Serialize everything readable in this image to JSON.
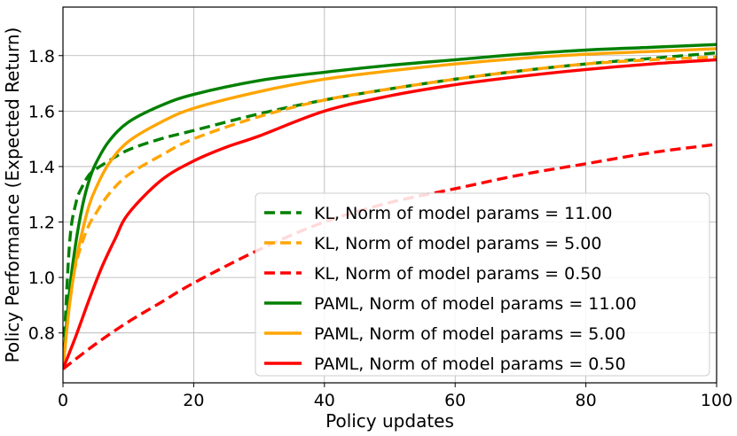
{
  "chart_data": {
    "type": "line",
    "title": "",
    "xlabel": "Policy updates",
    "ylabel": "Policy Performance (Expected Return)",
    "xlim": [
      0,
      100
    ],
    "ylim": [
      0.62,
      1.975
    ],
    "xticks": [
      0,
      20,
      40,
      60,
      80,
      100
    ],
    "yticks": [
      0.8,
      1.0,
      1.2,
      1.4,
      1.6,
      1.8
    ],
    "grid": true,
    "legend_position": "lower-right",
    "series": [
      {
        "name": "KL, Norm of model params = 11.00",
        "color": "#008000",
        "style": "dashed",
        "x": [
          0,
          1,
          2,
          3,
          4,
          5,
          7,
          10,
          15,
          20,
          30,
          40,
          50,
          60,
          70,
          80,
          90,
          100
        ],
        "y": [
          0.67,
          1.12,
          1.27,
          1.33,
          1.37,
          1.39,
          1.42,
          1.46,
          1.5,
          1.53,
          1.59,
          1.64,
          1.68,
          1.715,
          1.745,
          1.77,
          1.79,
          1.81
        ]
      },
      {
        "name": "KL, Norm of model params = 5.00",
        "color": "#FFA500",
        "style": "dashed",
        "x": [
          0,
          1,
          2,
          3,
          4,
          5,
          7,
          10,
          15,
          20,
          30,
          40,
          50,
          60,
          70,
          80,
          90,
          100
        ],
        "y": [
          0.67,
          0.93,
          1.05,
          1.13,
          1.19,
          1.23,
          1.3,
          1.37,
          1.44,
          1.5,
          1.58,
          1.64,
          1.68,
          1.715,
          1.745,
          1.77,
          1.785,
          1.795
        ]
      },
      {
        "name": "KL, Norm of model params = 0.50",
        "color": "#FF0000",
        "style": "dashed",
        "x": [
          0,
          5,
          10,
          15,
          20,
          30,
          40,
          50,
          60,
          70,
          80,
          90,
          100
        ],
        "y": [
          0.67,
          0.76,
          0.84,
          0.91,
          0.98,
          1.1,
          1.2,
          1.27,
          1.32,
          1.37,
          1.41,
          1.45,
          1.48
        ]
      },
      {
        "name": "PAML, Norm of model params = 11.00",
        "color": "#008000",
        "style": "solid",
        "x": [
          0,
          1,
          2,
          3,
          4,
          5,
          7,
          10,
          15,
          20,
          30,
          40,
          50,
          60,
          70,
          80,
          90,
          100
        ],
        "y": [
          0.67,
          0.95,
          1.13,
          1.26,
          1.35,
          1.41,
          1.49,
          1.56,
          1.62,
          1.66,
          1.71,
          1.74,
          1.765,
          1.785,
          1.805,
          1.82,
          1.83,
          1.84
        ]
      },
      {
        "name": "PAML, Norm of model params = 5.00",
        "color": "#FFA500",
        "style": "solid",
        "x": [
          0,
          1,
          2,
          3,
          4,
          5,
          7,
          10,
          15,
          20,
          30,
          40,
          50,
          60,
          70,
          80,
          90,
          100
        ],
        "y": [
          0.67,
          0.9,
          1.06,
          1.17,
          1.26,
          1.32,
          1.41,
          1.49,
          1.56,
          1.61,
          1.67,
          1.715,
          1.745,
          1.77,
          1.79,
          1.805,
          1.815,
          1.825
        ]
      },
      {
        "name": "PAML, Norm of model params = 0.50",
        "color": "#FF0000",
        "style": "solid",
        "x": [
          0,
          2,
          4,
          6,
          8,
          10,
          15,
          20,
          25,
          30,
          40,
          50,
          60,
          70,
          80,
          90,
          100
        ],
        "y": [
          0.67,
          0.79,
          0.92,
          1.04,
          1.14,
          1.23,
          1.35,
          1.42,
          1.47,
          1.51,
          1.6,
          1.655,
          1.695,
          1.725,
          1.75,
          1.77,
          1.785
        ]
      }
    ]
  }
}
